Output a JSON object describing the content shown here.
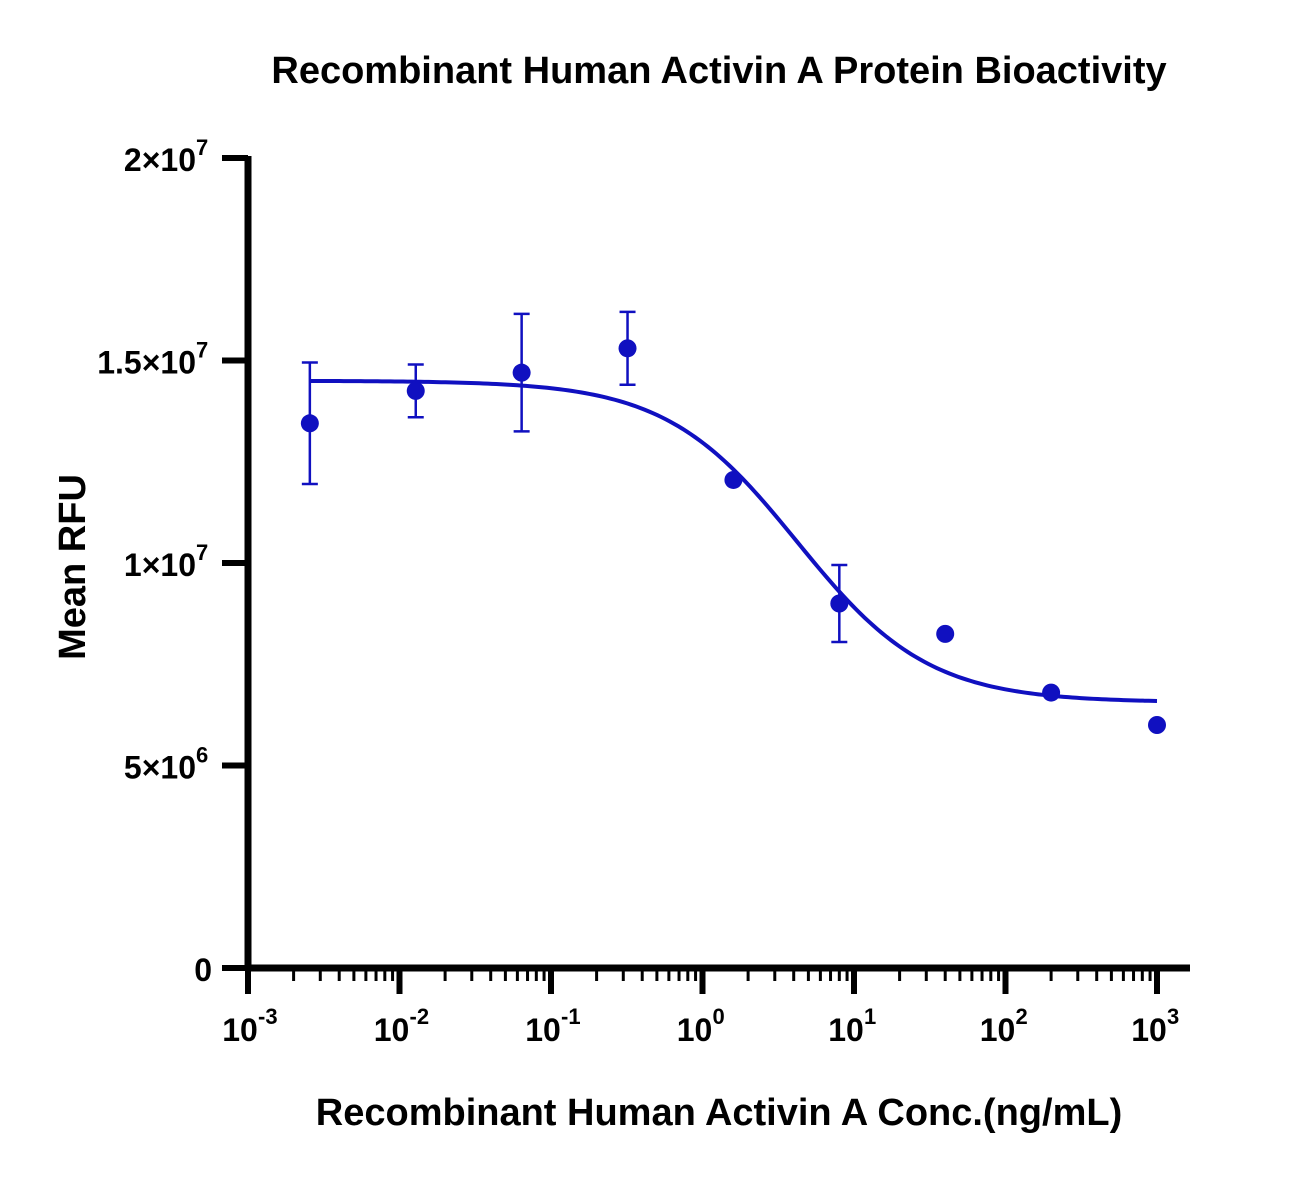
{
  "chart_data": {
    "type": "scatter",
    "title": "Recombinant Human Activin A Protein Bioactivity",
    "xlabel": "Recombinant Human Activin A Conc.(ng/mL)",
    "ylabel": "Mean RFU",
    "x_scale": "log",
    "xlim": [
      0.001,
      1500
    ],
    "ylim": [
      0,
      20000000
    ],
    "x_ticks": [
      {
        "value": 0.001,
        "base": "10",
        "exp": "-3"
      },
      {
        "value": 0.01,
        "base": "10",
        "exp": "-2"
      },
      {
        "value": 0.1,
        "base": "10",
        "exp": "-1"
      },
      {
        "value": 1,
        "base": "10",
        "exp": "0"
      },
      {
        "value": 10,
        "base": "10",
        "exp": "1"
      },
      {
        "value": 100,
        "base": "10",
        "exp": "2"
      },
      {
        "value": 1000,
        "base": "10",
        "exp": "3"
      }
    ],
    "y_ticks": [
      {
        "value": 0,
        "base": "0",
        "exp": ""
      },
      {
        "value": 5000000,
        "base": "5×10",
        "exp": "6"
      },
      {
        "value": 10000000,
        "base": "1×10",
        "exp": "7"
      },
      {
        "value": 15000000,
        "base": "1.5×10",
        "exp": "7"
      },
      {
        "value": 20000000,
        "base": "2×10",
        "exp": "7"
      }
    ],
    "grid": false,
    "color": "#1010c0",
    "points": [
      {
        "x": 0.00256,
        "y": 13450000,
        "err": 1500000
      },
      {
        "x": 0.0128,
        "y": 14250000,
        "err": 650000
      },
      {
        "x": 0.064,
        "y": 14700000,
        "err": 1450000
      },
      {
        "x": 0.32,
        "y": 15300000,
        "err": 900000
      },
      {
        "x": 1.6,
        "y": 12050000,
        "err": 0
      },
      {
        "x": 8,
        "y": 9000000,
        "err": 950000
      },
      {
        "x": 40,
        "y": 8250000,
        "err": 0
      },
      {
        "x": 200,
        "y": 6800000,
        "err": 0
      },
      {
        "x": 1000,
        "y": 6000000,
        "err": 0
      }
    ],
    "fit": {
      "model": "4PL",
      "top": 14500000,
      "bottom": 6560000,
      "ec50": 4.2,
      "hill": 1.0,
      "x_range": [
        0.00256,
        1000
      ]
    }
  }
}
